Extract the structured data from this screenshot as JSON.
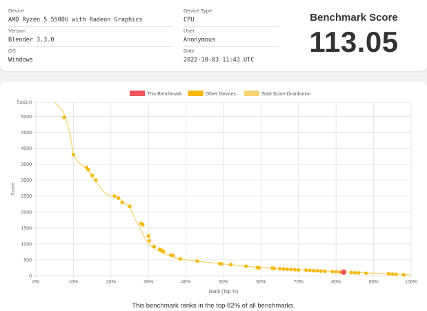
{
  "info": {
    "device_label": "Device",
    "device_value": "AMD Ryzen 5 5500U with Radeon Graphics",
    "version_label": "Version",
    "version_value": "Blender 3.3.0",
    "os_label": "OS",
    "os_value": "Windows",
    "device_type_label": "Device Type",
    "device_type_value": "CPU",
    "user_label": "User",
    "user_value": "Anonymous",
    "date_label": "Date",
    "date_value": "2022-10-03 11:43 UTC"
  },
  "score": {
    "label": "Benchmark Score",
    "value": "113.05"
  },
  "rank_text": "This benchmark ranks in the top 82% of all benchmarks.",
  "colors": {
    "this_benchmark": "#f0565f",
    "other_devices": "#f6b80c",
    "distribution": "#f8d372"
  },
  "chart_data": {
    "type": "line",
    "xlabel": "Rank (Top %)",
    "ylabel": "Score",
    "xlim": [
      0,
      100
    ],
    "ylim": [
      0,
      5444.0
    ],
    "x_ticks": [
      "0%",
      "10%",
      "20%",
      "30%",
      "40%",
      "50%",
      "60%",
      "70%",
      "80%",
      "90%",
      "100%"
    ],
    "y_ticks": [
      "0",
      "500",
      "1000",
      "1500",
      "2000",
      "2500",
      "3000",
      "3500",
      "4000",
      "4500",
      "5000",
      "5444.0"
    ],
    "legend": [
      "This Benchmark",
      "Other Devices",
      "Total Score Distribution"
    ],
    "legend_position": "top",
    "grid": true,
    "distribution": {
      "name": "Total Score Distribution",
      "x": [
        5,
        7,
        8,
        9,
        10,
        11,
        12,
        13,
        14,
        15,
        16,
        17,
        18,
        19,
        20,
        22,
        23,
        24,
        25,
        26,
        27,
        28,
        29,
        30,
        31,
        32,
        33,
        35,
        37,
        40,
        45,
        50,
        55,
        60,
        65,
        70,
        75,
        80,
        85,
        90,
        95,
        100
      ],
      "y": [
        5444,
        5200,
        4950,
        4500,
        3800,
        3600,
        3500,
        3400,
        3300,
        3150,
        2950,
        2800,
        2650,
        2550,
        2500,
        2450,
        2350,
        2250,
        2150,
        1900,
        1650,
        1450,
        1200,
        1000,
        900,
        820,
        760,
        650,
        570,
        500,
        430,
        370,
        310,
        260,
        220,
        190,
        160,
        130,
        110,
        80,
        50,
        20
      ]
    },
    "other_devices": {
      "name": "Other Devices",
      "x": [
        7.5,
        10,
        13.5,
        14,
        15,
        16,
        21,
        22,
        23,
        25,
        28,
        28.5,
        30,
        30.2,
        31.5,
        33,
        33.5,
        34,
        36,
        36.5,
        38.5,
        43,
        49,
        49.5,
        52,
        56,
        59,
        59.5,
        63,
        63.5,
        65,
        66,
        67,
        68,
        69,
        70,
        72,
        73,
        74,
        75,
        76,
        77,
        79,
        80,
        81,
        84,
        85,
        86,
        88,
        94,
        95,
        96,
        98
      ],
      "y": [
        4970,
        3800,
        3400,
        3330,
        3150,
        3000,
        2500,
        2440,
        2300,
        2180,
        1640,
        1600,
        1250,
        1100,
        920,
        830,
        800,
        760,
        650,
        640,
        530,
        460,
        380,
        370,
        350,
        300,
        260,
        250,
        240,
        230,
        220,
        210,
        205,
        200,
        190,
        180,
        175,
        170,
        160,
        155,
        150,
        140,
        135,
        125,
        115,
        100,
        95,
        90,
        80,
        60,
        50,
        45,
        30
      ]
    },
    "this_benchmark": {
      "name": "This Benchmark",
      "x": [
        82
      ],
      "y": [
        113.05
      ]
    }
  }
}
